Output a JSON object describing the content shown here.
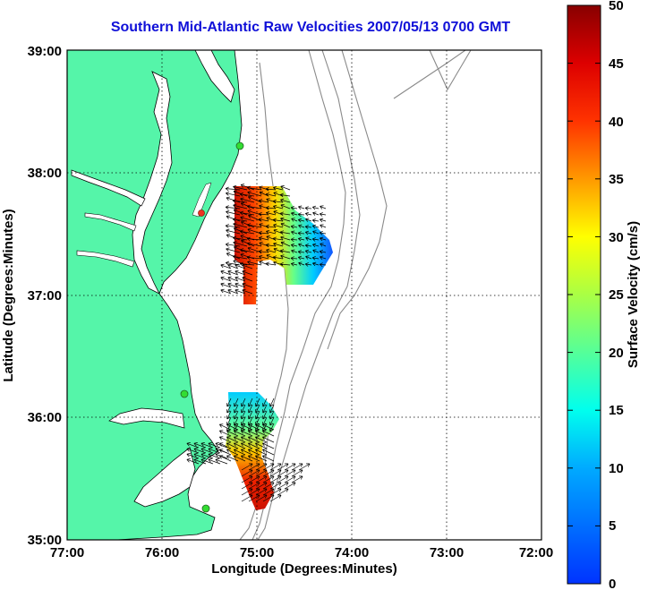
{
  "title": "Southern Mid-Atlantic Raw Velocities 2007/05/13 0700 GMT",
  "axes": {
    "xlabel": "Longitude (Degrees:Minutes)",
    "ylabel": "Latitude (Degrees:Minutes)",
    "xticks": [
      "77:00",
      "76:00",
      "75:00",
      "74:00",
      "73:00",
      "72:00"
    ],
    "yticks": [
      "39:00",
      "38:00",
      "37:00",
      "36:00",
      "35:00"
    ]
  },
  "colorbar": {
    "label": "Surface Velocity (cm/s)",
    "ticks": [
      "0",
      "5",
      "10",
      "15",
      "20",
      "25",
      "30",
      "35",
      "40",
      "45",
      "50"
    ],
    "min": 0,
    "max": 50
  },
  "colors": {
    "land": "#55f5a9",
    "water": "#ffffff",
    "title": "#1010d8",
    "bathymetry": "#8a8a8a"
  },
  "map_data": {
    "lon_range": [
      -77,
      -72
    ],
    "lat_range": [
      35,
      39
    ],
    "grid": "dotted",
    "stations": [
      {
        "lon": -75.16,
        "lat": 38.2,
        "color": "#33dd33"
      },
      {
        "lon": -75.55,
        "lat": 37.65,
        "color": "#ee3322"
      },
      {
        "lon": -75.8,
        "lat": 36.18,
        "color": "#33dd33"
      },
      {
        "lon": -75.52,
        "lat": 35.27,
        "color": "#33dd33"
      }
    ],
    "velocity_field_north": {
      "lon_range": [
        -75.12,
        -74.15
      ],
      "lat_range": [
        36.95,
        37.88
      ],
      "peak_cm_s": 45
    },
    "velocity_field_south": {
      "lon_range": [
        -75.3,
        -74.58
      ],
      "lat_range": [
        35.25,
        36.2
      ],
      "peak_cm_s": 45
    }
  }
}
